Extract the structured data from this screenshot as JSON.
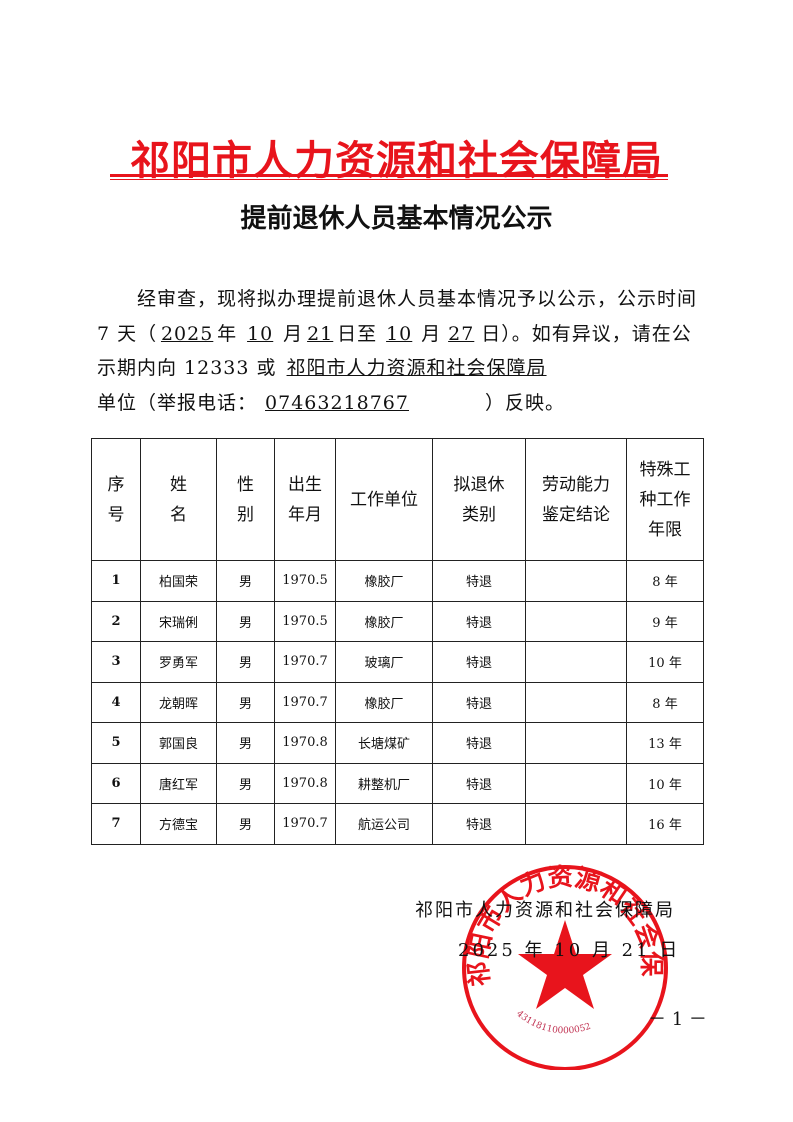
{
  "header": {
    "title": "祁阳市人力资源和社会保障局",
    "subtitle": "提前退休人员基本情况公示"
  },
  "notice": {
    "p1": "经审查，现将拟办理提前退休人员基本情况予以公示，公示时间 7 天（",
    "year": "2025",
    "t_year": "年",
    "m1": "10",
    "t_month": "月",
    "d1": "21",
    "t_day_to": "日至",
    "m2": "10",
    "t_month2": "月",
    "d2": "27",
    "t_end": "日）。如有异议，请在公示期内向 12333 或",
    "unit": "祁阳市人力资源和社会保障局",
    "t_unit": "单位（举报电话：",
    "phone": "07463218767",
    "t_close": "）反映。"
  },
  "table": {
    "headers": [
      "序号",
      "姓名",
      "性别",
      "出生年月",
      "工作单位",
      "拟退休类别",
      "劳动能力鉴定结论",
      "特殊工种工作年限"
    ],
    "rows": [
      [
        "1",
        "柏国荣",
        "男",
        "1970.5",
        "橡胶厂",
        "特退",
        "",
        "8 年"
      ],
      [
        "2",
        "宋瑞俐",
        "男",
        "1970.5",
        "橡胶厂",
        "特退",
        "",
        "9 年"
      ],
      [
        "3",
        "罗勇军",
        "男",
        "1970.7",
        "玻璃厂",
        "特退",
        "",
        "10 年"
      ],
      [
        "4",
        "龙朝晖",
        "男",
        "1970.7",
        "橡胶厂",
        "特退",
        "",
        "8 年"
      ],
      [
        "5",
        "郭国良",
        "男",
        "1970.8",
        "长塘煤矿",
        "特退",
        "",
        "13 年"
      ],
      [
        "6",
        "唐红军",
        "男",
        "1970.8",
        "耕整机厂",
        "特退",
        "",
        "10 年"
      ],
      [
        "7",
        "方德宝",
        "男",
        "1970.7",
        "航运公司",
        "特退",
        "",
        "16 年"
      ]
    ]
  },
  "footer": {
    "signer": "祁阳市人力资源和社会保障局",
    "date": "2025 年 10 月 21 日",
    "page": "－ 1 －"
  },
  "seal": {
    "text": "祁阳市人力资源和社会保障局",
    "code": "43118110000052",
    "color": "#e8141c"
  }
}
